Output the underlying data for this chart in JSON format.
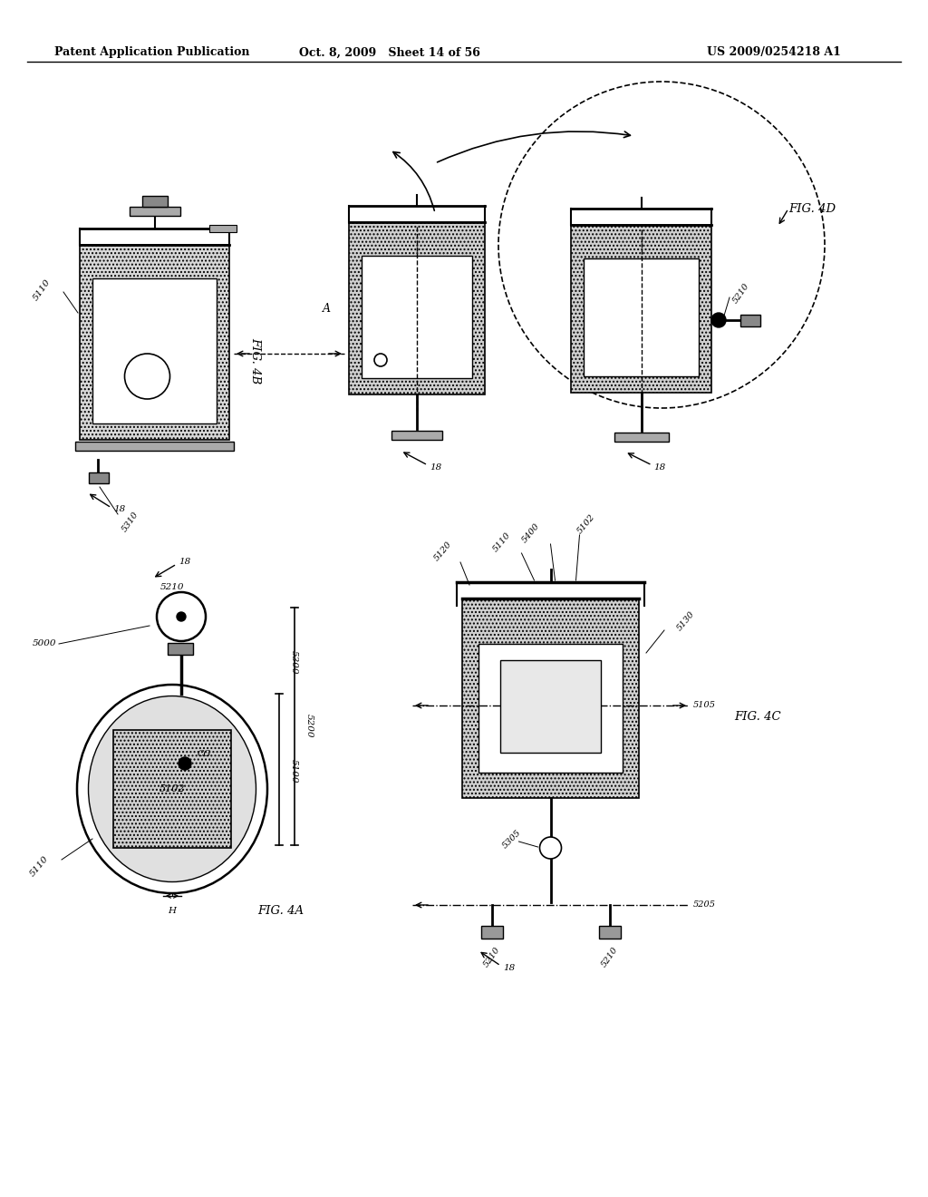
{
  "bg_color": "#ffffff",
  "header_left": "Patent Application Publication",
  "header_mid": "Oct. 8, 2009   Sheet 14 of 56",
  "header_right": "US 2009/0254218 A1",
  "text_color": "#000000",
  "line_color": "#000000"
}
